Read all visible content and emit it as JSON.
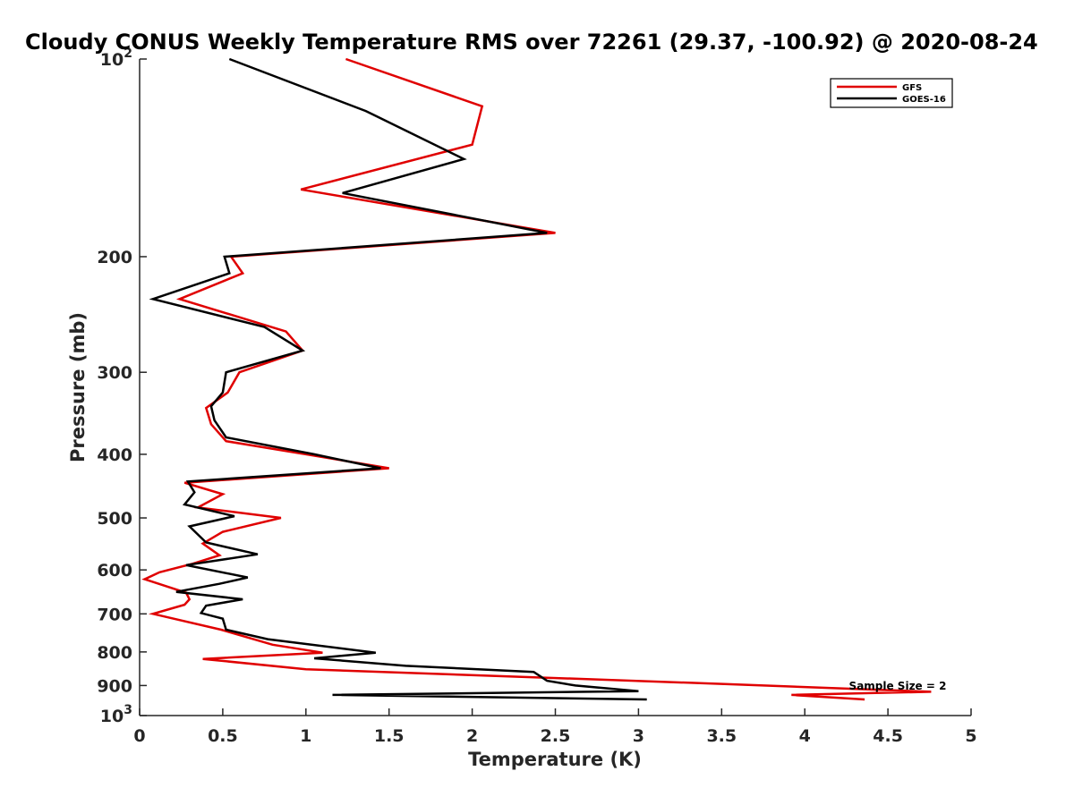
{
  "chart_data": {
    "type": "line",
    "title": "Cloudy CONUS Weekly Temperature RMS over 72261 (29.37, -100.92) @ 2020-08-24",
    "xlabel": "Temperature (K)",
    "ylabel": "Pressure (mb)",
    "xlim": [
      0,
      5
    ],
    "ylim": [
      100,
      1000
    ],
    "y_scale": "log",
    "y_reversed": true,
    "grid": false,
    "legend_position": "top-right",
    "x_ticks": [
      {
        "value": 0,
        "label": "0"
      },
      {
        "value": 0.5,
        "label": "0.5"
      },
      {
        "value": 1,
        "label": "1"
      },
      {
        "value": 1.5,
        "label": "1.5"
      },
      {
        "value": 2,
        "label": "2"
      },
      {
        "value": 2.5,
        "label": "2.5"
      },
      {
        "value": 3,
        "label": "3"
      },
      {
        "value": 3.5,
        "label": "3.5"
      },
      {
        "value": 4,
        "label": "4"
      },
      {
        "value": 4.5,
        "label": "4.5"
      },
      {
        "value": 5,
        "label": "5"
      }
    ],
    "y_ticks": [
      {
        "value": 100,
        "base": "10",
        "exp": "2"
      },
      {
        "value": 200,
        "label": "200"
      },
      {
        "value": 300,
        "label": "300"
      },
      {
        "value": 400,
        "label": "400"
      },
      {
        "value": 500,
        "label": "500"
      },
      {
        "value": 600,
        "label": "600"
      },
      {
        "value": 700,
        "label": "700"
      },
      {
        "value": 800,
        "label": "800"
      },
      {
        "value": 900,
        "label": "900"
      },
      {
        "value": 1000,
        "base": "10",
        "exp": "3"
      }
    ],
    "annotation": "Sample Size = 2",
    "series": [
      {
        "name": "GFS",
        "color": "#e00000",
        "points": [
          [
            1.24,
            100
          ],
          [
            2.06,
            118
          ],
          [
            2.0,
            135
          ],
          [
            0.97,
            158
          ],
          [
            2.5,
            184
          ],
          [
            0.55,
            200
          ],
          [
            0.62,
            212
          ],
          [
            0.24,
            232
          ],
          [
            0.88,
            260
          ],
          [
            0.98,
            278
          ],
          [
            0.6,
            300
          ],
          [
            0.53,
            322
          ],
          [
            0.4,
            340
          ],
          [
            0.43,
            360
          ],
          [
            0.52,
            382
          ],
          [
            1.0,
            400
          ],
          [
            1.5,
            420
          ],
          [
            0.27,
            442
          ],
          [
            0.5,
            460
          ],
          [
            0.35,
            482
          ],
          [
            0.85,
            500
          ],
          [
            0.5,
            525
          ],
          [
            0.38,
            547
          ],
          [
            0.48,
            570
          ],
          [
            0.32,
            587
          ],
          [
            0.12,
            605
          ],
          [
            0.03,
            620
          ],
          [
            0.28,
            650
          ],
          [
            0.3,
            665
          ],
          [
            0.27,
            678
          ],
          [
            0.08,
            700
          ],
          [
            0.49,
            740
          ],
          [
            0.8,
            780
          ],
          [
            1.1,
            802
          ],
          [
            0.38,
            820
          ],
          [
            1.0,
            850
          ],
          [
            3.5,
            895
          ],
          [
            4.76,
            920
          ],
          [
            3.92,
            930
          ],
          [
            4.36,
            945
          ]
        ]
      },
      {
        "name": "GOES-16",
        "color": "#000000",
        "points": [
          [
            0.54,
            100
          ],
          [
            1.36,
            120
          ],
          [
            1.95,
            142
          ],
          [
            1.22,
            160
          ],
          [
            2.45,
            184
          ],
          [
            0.51,
            200
          ],
          [
            0.54,
            212
          ],
          [
            0.08,
            232
          ],
          [
            0.75,
            256
          ],
          [
            0.98,
            278
          ],
          [
            0.52,
            300
          ],
          [
            0.5,
            322
          ],
          [
            0.43,
            338
          ],
          [
            0.45,
            355
          ],
          [
            0.52,
            377
          ],
          [
            1.05,
            400
          ],
          [
            1.45,
            420
          ],
          [
            0.29,
            440
          ],
          [
            0.33,
            457
          ],
          [
            0.27,
            477
          ],
          [
            0.57,
            497
          ],
          [
            0.3,
            515
          ],
          [
            0.4,
            545
          ],
          [
            0.71,
            568
          ],
          [
            0.28,
            590
          ],
          [
            0.65,
            616
          ],
          [
            0.48,
            630
          ],
          [
            0.22,
            648
          ],
          [
            0.62,
            665
          ],
          [
            0.4,
            680
          ],
          [
            0.37,
            698
          ],
          [
            0.5,
            712
          ],
          [
            0.52,
            740
          ],
          [
            0.77,
            765
          ],
          [
            1.42,
            802
          ],
          [
            1.05,
            818
          ],
          [
            1.6,
            840
          ],
          [
            2.37,
            858
          ],
          [
            2.45,
            885
          ],
          [
            2.62,
            900
          ],
          [
            3.0,
            918
          ],
          [
            1.16,
            930
          ],
          [
            3.05,
            945
          ]
        ]
      }
    ]
  }
}
